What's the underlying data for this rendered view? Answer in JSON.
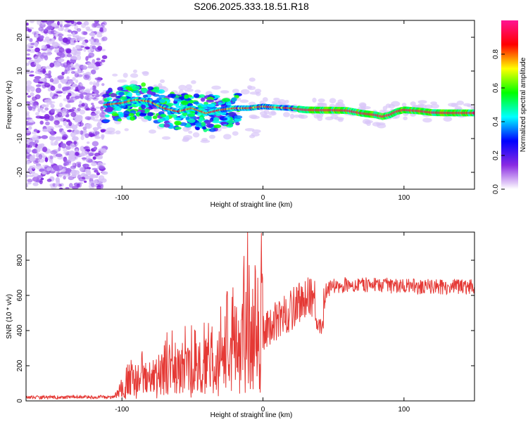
{
  "title": "S206.2025.333.18.51.R18",
  "chart_data": [
    {
      "type": "heatmap",
      "name": "spectrogram",
      "xlabel": "Height of straight line (km)",
      "ylabel": "Frequency (Hz)",
      "xlim": [
        -168,
        150
      ],
      "ylim": [
        -25,
        25
      ],
      "xticks": [
        -100,
        0,
        100
      ],
      "yticks": [
        -20,
        -10,
        0,
        10,
        20
      ],
      "xtick_labels": [
        "-100",
        "0",
        "100"
      ],
      "ytick_labels": [
        "-20",
        "-10",
        "0",
        "10",
        "20"
      ],
      "ridge": [
        {
          "x": -112,
          "f": 0.0
        },
        {
          "x": -100,
          "f": 0.5
        },
        {
          "x": -90,
          "f": 1.5
        },
        {
          "x": -80,
          "f": 1.0
        },
        {
          "x": -70,
          "f": -1.0
        },
        {
          "x": -60,
          "f": -2.0
        },
        {
          "x": -50,
          "f": -1.0
        },
        {
          "x": -40,
          "f": -2.5
        },
        {
          "x": -30,
          "f": -1.5
        },
        {
          "x": -20,
          "f": -1.0
        },
        {
          "x": -10,
          "f": -1.0
        },
        {
          "x": 0,
          "f": -0.5
        },
        {
          "x": 10,
          "f": -0.8
        },
        {
          "x": 20,
          "f": -1.0
        },
        {
          "x": 30,
          "f": -1.5
        },
        {
          "x": 40,
          "f": -1.6
        },
        {
          "x": 50,
          "f": -1.6
        },
        {
          "x": 60,
          "f": -1.7
        },
        {
          "x": 70,
          "f": -2.5
        },
        {
          "x": 80,
          "f": -3.0
        },
        {
          "x": 85,
          "f": -3.5
        },
        {
          "x": 90,
          "f": -3.0
        },
        {
          "x": 95,
          "f": -2.0
        },
        {
          "x": 100,
          "f": -1.5
        },
        {
          "x": 110,
          "f": -1.8
        },
        {
          "x": 120,
          "f": -2.3
        },
        {
          "x": 130,
          "f": -2.4
        },
        {
          "x": 140,
          "f": -2.4
        },
        {
          "x": 150,
          "f": -2.4
        }
      ],
      "noise_region_x": [
        -168,
        -112
      ]
    },
    {
      "type": "line",
      "name": "snr",
      "xlabel": "Height of straight line (km)",
      "ylabel": "SNR (10 * v/v)",
      "xlim": [
        -168,
        150
      ],
      "ylim": [
        0,
        960
      ],
      "xticks": [
        -100,
        0,
        100
      ],
      "yticks": [
        0,
        200,
        400,
        600,
        800
      ],
      "xtick_labels": [
        "-100",
        "0",
        "100"
      ],
      "ytick_labels": [
        "0",
        "200",
        "400",
        "600",
        "800"
      ],
      "color": "#e53935",
      "trend": [
        {
          "x": -168,
          "y": 20
        },
        {
          "x": -105,
          "y": 22
        },
        {
          "x": -100,
          "y": 60
        },
        {
          "x": -90,
          "y": 110
        },
        {
          "x": -80,
          "y": 120
        },
        {
          "x": -70,
          "y": 150
        },
        {
          "x": -60,
          "y": 160
        },
        {
          "x": -50,
          "y": 170
        },
        {
          "x": -40,
          "y": 190
        },
        {
          "x": -30,
          "y": 220
        },
        {
          "x": -20,
          "y": 280
        },
        {
          "x": -10,
          "y": 340
        },
        {
          "x": 0,
          "y": 400
        },
        {
          "x": 10,
          "y": 460
        },
        {
          "x": 20,
          "y": 520
        },
        {
          "x": 30,
          "y": 580
        },
        {
          "x": 40,
          "y": 610
        },
        {
          "x": 50,
          "y": 650
        },
        {
          "x": 60,
          "y": 660
        },
        {
          "x": 80,
          "y": 660
        },
        {
          "x": 100,
          "y": 650
        },
        {
          "x": 120,
          "y": 650
        },
        {
          "x": 150,
          "y": 650
        }
      ],
      "spikes": [
        {
          "x": -11,
          "y": 960
        },
        {
          "x": -12,
          "y": 620
        },
        {
          "x": -20,
          "y": 540
        },
        {
          "x": 38,
          "y": 460
        },
        {
          "x": 40,
          "y": 390
        },
        {
          "x": 42,
          "y": 410
        }
      ]
    }
  ],
  "colorbar": {
    "label": "Normalized spectral amplitude",
    "ticks": [
      0.0,
      0.2,
      0.4,
      0.6,
      0.8
    ],
    "tick_labels": [
      "0.0",
      "0.2",
      "0.4",
      "0.6",
      "0.8"
    ],
    "range": [
      0,
      1
    ],
    "colors": [
      "#ffffff",
      "#8a2be2",
      "#0000ff",
      "#00ffff",
      "#00ff00",
      "#ffff00",
      "#ff0000",
      "#ff1493"
    ]
  }
}
